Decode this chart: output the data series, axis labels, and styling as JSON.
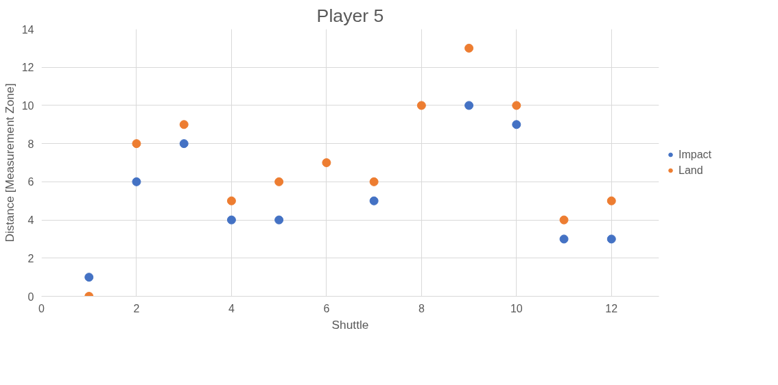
{
  "chart_data": {
    "type": "scatter",
    "title": "Player 5",
    "xlabel": "Shuttle",
    "ylabel": "Distance [Measurement Zone]",
    "x": [
      1,
      2,
      3,
      4,
      5,
      6,
      7,
      8,
      9,
      10,
      11,
      12
    ],
    "series": [
      {
        "name": "Impact",
        "color": "#4472c4",
        "values": [
          1,
          6,
          8,
          4,
          4,
          null,
          5,
          null,
          10,
          9,
          3,
          3
        ]
      },
      {
        "name": "Land",
        "color": "#ed7d31",
        "values": [
          0,
          8,
          9,
          5,
          6,
          7,
          6,
          10,
          13,
          10,
          4,
          5
        ]
      }
    ],
    "xlim": [
      0,
      13
    ],
    "xticks": [
      0,
      2,
      4,
      6,
      8,
      10,
      12
    ],
    "ylim": [
      0,
      14
    ],
    "yticks": [
      0,
      2,
      4,
      6,
      8,
      10,
      12,
      14
    ],
    "grid": true,
    "legend": "right",
    "marker": "circle"
  }
}
